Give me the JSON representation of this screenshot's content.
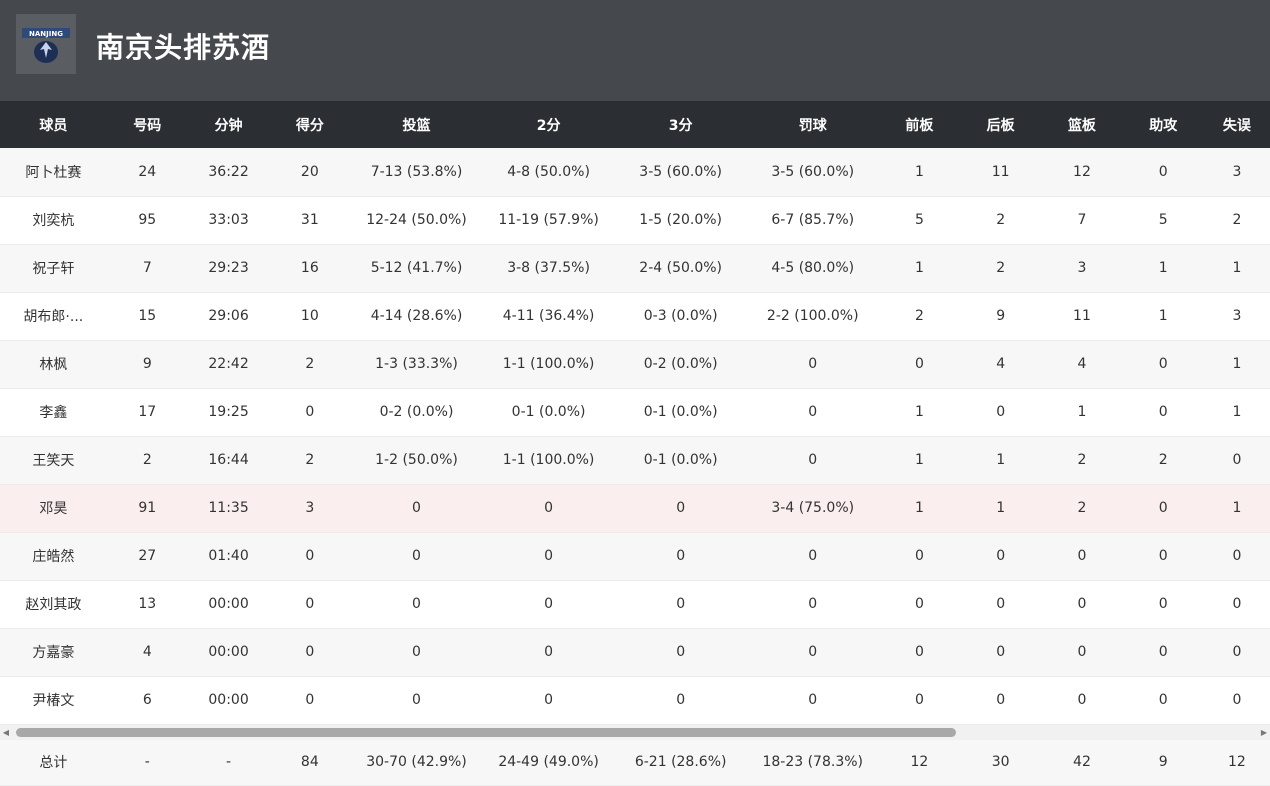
{
  "team": {
    "name": "南京头排苏酒",
    "logo_icon": "team-logo-icon"
  },
  "columns": [
    "球员",
    "号码",
    "分钟",
    "得分",
    "投篮",
    "2分",
    "3分",
    "罚球",
    "前板",
    "后板",
    "篮板",
    "助攻",
    "失误"
  ],
  "players": [
    [
      "阿卜杜赛",
      "24",
      "36:22",
      "20",
      "7-13 (53.8%)",
      "4-8 (50.0%)",
      "3-5 (60.0%)",
      "3-5 (60.0%)",
      "1",
      "11",
      "12",
      "0",
      "3"
    ],
    [
      "刘奕杭",
      "95",
      "33:03",
      "31",
      "12-24 (50.0%)",
      "11-19 (57.9%)",
      "1-5 (20.0%)",
      "6-7 (85.7%)",
      "5",
      "2",
      "7",
      "5",
      "2"
    ],
    [
      "祝子轩",
      "7",
      "29:23",
      "16",
      "5-12 (41.7%)",
      "3-8 (37.5%)",
      "2-4 (50.0%)",
      "4-5 (80.0%)",
      "1",
      "2",
      "3",
      "1",
      "1"
    ],
    [
      "胡布郎·...",
      "15",
      "29:06",
      "10",
      "4-14 (28.6%)",
      "4-11 (36.4%)",
      "0-3 (0.0%)",
      "2-2 (100.0%)",
      "2",
      "9",
      "11",
      "1",
      "3"
    ],
    [
      "林枫",
      "9",
      "22:42",
      "2",
      "1-3 (33.3%)",
      "1-1 (100.0%)",
      "0-2 (0.0%)",
      "0",
      "0",
      "4",
      "4",
      "0",
      "1"
    ],
    [
      "李鑫",
      "17",
      "19:25",
      "0",
      "0-2 (0.0%)",
      "0-1 (0.0%)",
      "0-1 (0.0%)",
      "0",
      "1",
      "0",
      "1",
      "0",
      "1"
    ],
    [
      "王笑天",
      "2",
      "16:44",
      "2",
      "1-2 (50.0%)",
      "1-1 (100.0%)",
      "0-1 (0.0%)",
      "0",
      "1",
      "1",
      "2",
      "2",
      "0"
    ],
    [
      "邓昊",
      "91",
      "11:35",
      "3",
      "0",
      "0",
      "0",
      "3-4 (75.0%)",
      "1",
      "1",
      "2",
      "0",
      "1"
    ],
    [
      "庄皓然",
      "27",
      "01:40",
      "0",
      "0",
      "0",
      "0",
      "0",
      "0",
      "0",
      "0",
      "0",
      "0"
    ],
    [
      "赵刘其政",
      "13",
      "00:00",
      "0",
      "0",
      "0",
      "0",
      "0",
      "0",
      "0",
      "0",
      "0",
      "0"
    ],
    [
      "方嘉豪",
      "4",
      "00:00",
      "0",
      "0",
      "0",
      "0",
      "0",
      "0",
      "0",
      "0",
      "0",
      "0"
    ],
    [
      "尹椿文",
      "6",
      "00:00",
      "0",
      "0",
      "0",
      "0",
      "0",
      "0",
      "0",
      "0",
      "0",
      "0"
    ]
  ],
  "highlight_row": 7,
  "totals": [
    "总计",
    "-",
    "-",
    "84",
    "30-70 (42.9%)",
    "24-49 (49.0%)",
    "6-21 (28.6%)",
    "18-23 (78.3%)",
    "12",
    "30",
    "42",
    "9",
    "12"
  ],
  "colors": {
    "header_bg": "#45484c",
    "table_header_bg": "#2b2e33",
    "highlight_row_bg": "#fbeeee"
  }
}
